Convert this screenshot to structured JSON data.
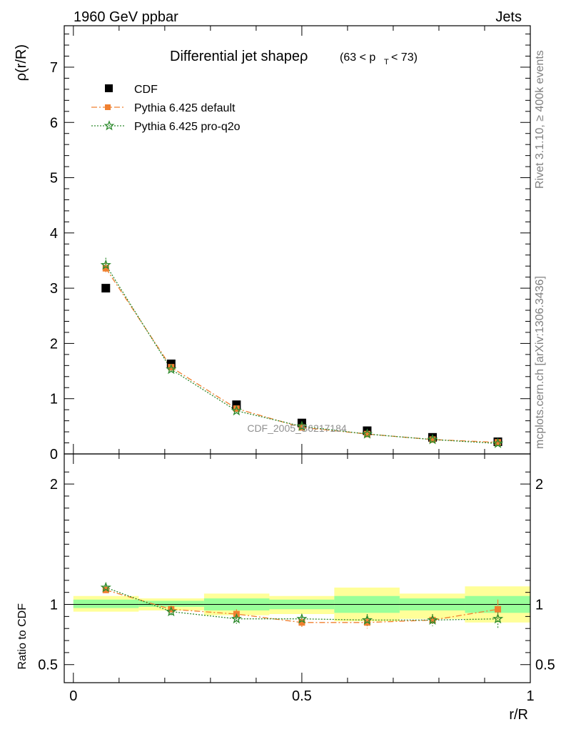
{
  "header": {
    "left": "1960 GeV ppbar",
    "right": "Jets"
  },
  "side": {
    "rivet": "Rivet 3.1.10, ≥ 400k events",
    "mcplots": "mcplots.cern.ch [arXiv:1306.3436]"
  },
  "title": {
    "main": "Differential jet shapeρ",
    "range_open": "(63 < p",
    "range_sub": "T",
    "range_close": " < 73)"
  },
  "watermark": "CDF_2005_S6217184",
  "legend": {
    "cdf": "CDF",
    "pythia_default": "Pythia 6.425 default",
    "pythia_pro": "Pythia 6.425 pro-q2o"
  },
  "colors": {
    "cdf": "#000000",
    "pythia_default": "#f08030",
    "pythia_pro": "#2e8b2e",
    "band_inner": "#99ff99",
    "band_outer": "#ffff99"
  },
  "chart_data": [
    {
      "type": "line",
      "ylabel": "ρ(r/R)",
      "xlim": [
        -0.02,
        1.0
      ],
      "ylim": [
        0,
        7.75
      ],
      "yticks": [
        "0",
        "1",
        "2",
        "3",
        "4",
        "5",
        "6",
        "7"
      ],
      "x": [
        0.071,
        0.214,
        0.357,
        0.5,
        0.643,
        0.786,
        0.929
      ],
      "series": [
        {
          "name": "CDF",
          "values": [
            3.0,
            1.63,
            0.89,
            0.56,
            0.42,
            0.3,
            0.22
          ]
        },
        {
          "name": "Pythia 6.425 default",
          "values": [
            3.36,
            1.57,
            0.82,
            0.48,
            0.36,
            0.26,
            0.21
          ],
          "errors": [
            0.1,
            0.04,
            0.03,
            0.02,
            0.02,
            0.01,
            0.02
          ]
        },
        {
          "name": "Pythia 6.425 pro-q2o",
          "values": [
            3.42,
            1.53,
            0.78,
            0.5,
            0.36,
            0.26,
            0.19
          ],
          "errors": [
            0.13,
            0.05,
            0.03,
            0.02,
            0.02,
            0.01,
            0.02
          ]
        }
      ]
    },
    {
      "type": "line",
      "xlabel": "r/R",
      "ylabel": "Ratio to CDF",
      "xlim": [
        -0.02,
        1.0
      ],
      "ylim": [
        0.35,
        2.25
      ],
      "xticks": [
        "0",
        "0.5",
        "1"
      ],
      "yticks": [
        "0.5",
        "1",
        "2"
      ],
      "bin_edges": [
        0.0,
        0.143,
        0.286,
        0.429,
        0.571,
        0.714,
        0.857,
        1.0
      ],
      "band_inner": [
        [
          0.97,
          1.04
        ],
        [
          0.98,
          1.03
        ],
        [
          0.95,
          1.05
        ],
        [
          0.96,
          1.04
        ],
        [
          0.93,
          1.07
        ],
        [
          0.95,
          1.05
        ],
        [
          0.93,
          1.07
        ]
      ],
      "band_outer": [
        [
          0.94,
          1.07
        ],
        [
          0.95,
          1.05
        ],
        [
          0.91,
          1.09
        ],
        [
          0.92,
          1.07
        ],
        [
          0.86,
          1.14
        ],
        [
          0.88,
          1.09
        ],
        [
          0.85,
          1.15
        ]
      ],
      "x": [
        0.071,
        0.214,
        0.357,
        0.5,
        0.643,
        0.786,
        0.929
      ],
      "series": [
        {
          "name": "Pythia 6.425 default",
          "values": [
            1.12,
            0.96,
            0.92,
            0.85,
            0.85,
            0.87,
            0.96
          ],
          "errors": [
            0.03,
            0.03,
            0.04,
            0.04,
            0.05,
            0.05,
            0.08
          ]
        },
        {
          "name": "Pythia 6.425 pro-q2o",
          "values": [
            1.14,
            0.94,
            0.88,
            0.88,
            0.87,
            0.87,
            0.88
          ],
          "errors": [
            0.04,
            0.03,
            0.04,
            0.04,
            0.05,
            0.05,
            0.08
          ]
        }
      ]
    }
  ]
}
